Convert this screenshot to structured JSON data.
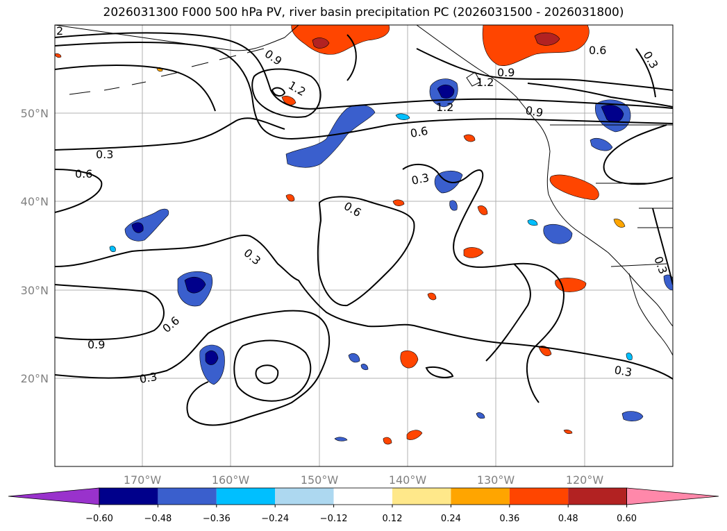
{
  "title": "2026031300 F000 500 hPa PV, river basin precipitation PC (2026031500 - 2026031800)",
  "axes": {
    "lon_ticks": [
      "170°W",
      "160°W",
      "150°W",
      "140°W",
      "130°W",
      "120°W"
    ],
    "lat_ticks": [
      "50°N",
      "40°N",
      "30°N",
      "20°N"
    ],
    "grid": true
  },
  "contour_labels": [
    "0.9",
    "1.2",
    "1.2",
    "1.2",
    "0.9",
    "0.6",
    "0.9",
    "0.6",
    "0.3",
    "0.3",
    "0.6",
    "0.3",
    "0.6",
    "0.3",
    "0.6",
    "0.9",
    "0.3",
    "0.3",
    "0.3",
    "2"
  ],
  "colorbar": {
    "ticks": [
      "−0.60",
      "−0.48",
      "−0.36",
      "−0.24",
      "−0.12",
      "0.12",
      "0.24",
      "0.36",
      "0.48",
      "0.60"
    ],
    "colors": [
      "#9932cc",
      "#00008b",
      "#3a5fcd",
      "#00bfff",
      "#add8f0",
      "#ffffff",
      "#ffe88a",
      "#ffa500",
      "#ff4500",
      "#b22222",
      "#ff88aa"
    ]
  }
}
